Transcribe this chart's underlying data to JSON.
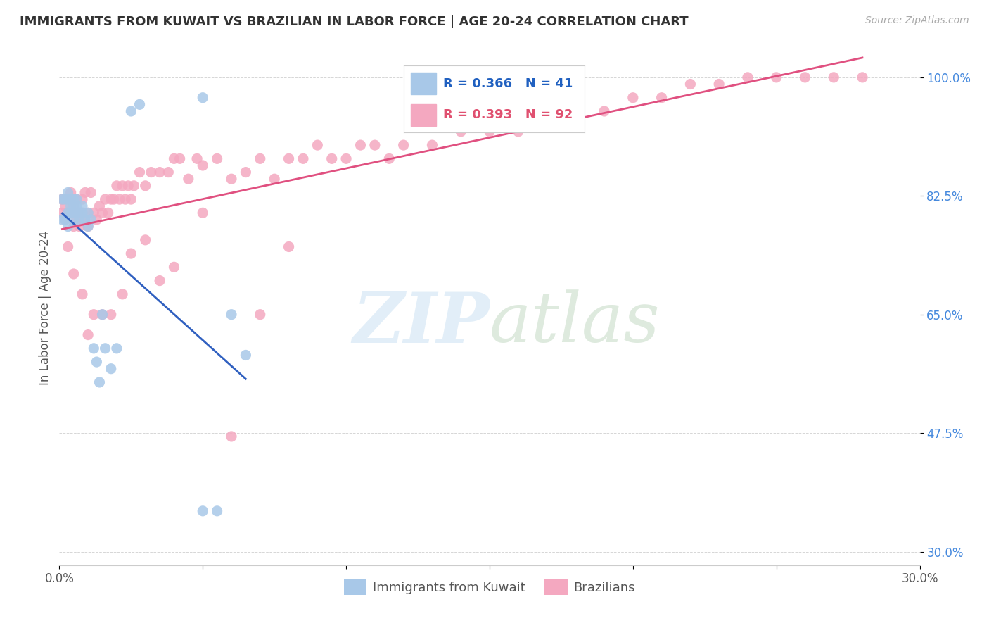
{
  "title": "IMMIGRANTS FROM KUWAIT VS BRAZILIAN IN LABOR FORCE | AGE 20-24 CORRELATION CHART",
  "source": "Source: ZipAtlas.com",
  "ylabel": "In Labor Force | Age 20-24",
  "xlim": [
    0.0,
    0.3
  ],
  "ylim": [
    0.28,
    1.04
  ],
  "yticks": [
    0.3,
    0.475,
    0.65,
    0.825,
    1.0
  ],
  "ytick_labels": [
    "30.0%",
    "47.5%",
    "65.0%",
    "82.5%",
    "100.0%"
  ],
  "xticks": [
    0.0,
    0.05,
    0.1,
    0.15,
    0.2,
    0.25,
    0.3
  ],
  "xtick_labels": [
    "0.0%",
    "",
    "",
    "",
    "",
    "",
    "30.0%"
  ],
  "kuwait_R": 0.366,
  "kuwait_N": 41,
  "brazil_R": 0.393,
  "brazil_N": 92,
  "kuwait_color": "#a8c8e8",
  "brazil_color": "#f4a8c0",
  "kuwait_line_color": "#3060c0",
  "brazil_line_color": "#e05080",
  "legend_blue": "#2060c0",
  "legend_pink": "#e05070",
  "kuwait_x": [
    0.001,
    0.001,
    0.002,
    0.002,
    0.003,
    0.003,
    0.003,
    0.003,
    0.004,
    0.004,
    0.004,
    0.004,
    0.005,
    0.005,
    0.005,
    0.005,
    0.006,
    0.006,
    0.006,
    0.007,
    0.007,
    0.008,
    0.008,
    0.009,
    0.01,
    0.01,
    0.011,
    0.012,
    0.013,
    0.014,
    0.015,
    0.016,
    0.018,
    0.02,
    0.025,
    0.028,
    0.05,
    0.05,
    0.055,
    0.06,
    0.065
  ],
  "kuwait_y": [
    0.79,
    0.82,
    0.79,
    0.82,
    0.78,
    0.8,
    0.82,
    0.83,
    0.81,
    0.82,
    0.8,
    0.82,
    0.8,
    0.82,
    0.79,
    0.81,
    0.8,
    0.81,
    0.82,
    0.79,
    0.8,
    0.81,
    0.8,
    0.79,
    0.78,
    0.8,
    0.79,
    0.6,
    0.58,
    0.55,
    0.65,
    0.6,
    0.57,
    0.6,
    0.95,
    0.96,
    0.97,
    0.36,
    0.36,
    0.65,
    0.59
  ],
  "brazil_x": [
    0.001,
    0.001,
    0.002,
    0.002,
    0.003,
    0.003,
    0.004,
    0.004,
    0.005,
    0.005,
    0.006,
    0.006,
    0.007,
    0.007,
    0.008,
    0.008,
    0.009,
    0.009,
    0.01,
    0.01,
    0.011,
    0.012,
    0.013,
    0.014,
    0.015,
    0.016,
    0.017,
    0.018,
    0.019,
    0.02,
    0.021,
    0.022,
    0.023,
    0.024,
    0.025,
    0.026,
    0.028,
    0.03,
    0.032,
    0.035,
    0.038,
    0.04,
    0.042,
    0.045,
    0.048,
    0.05,
    0.055,
    0.06,
    0.065,
    0.07,
    0.075,
    0.08,
    0.085,
    0.09,
    0.095,
    0.1,
    0.105,
    0.11,
    0.115,
    0.12,
    0.13,
    0.14,
    0.15,
    0.16,
    0.17,
    0.18,
    0.19,
    0.2,
    0.21,
    0.22,
    0.23,
    0.24,
    0.25,
    0.26,
    0.27,
    0.28,
    0.003,
    0.005,
    0.008,
    0.01,
    0.012,
    0.015,
    0.018,
    0.022,
    0.025,
    0.03,
    0.035,
    0.04,
    0.05,
    0.06,
    0.07,
    0.08
  ],
  "brazil_y": [
    0.8,
    0.82,
    0.79,
    0.81,
    0.82,
    0.8,
    0.83,
    0.8,
    0.78,
    0.81,
    0.79,
    0.82,
    0.8,
    0.78,
    0.82,
    0.8,
    0.79,
    0.83,
    0.78,
    0.8,
    0.83,
    0.8,
    0.79,
    0.81,
    0.8,
    0.82,
    0.8,
    0.82,
    0.82,
    0.84,
    0.82,
    0.84,
    0.82,
    0.84,
    0.82,
    0.84,
    0.86,
    0.84,
    0.86,
    0.86,
    0.86,
    0.88,
    0.88,
    0.85,
    0.88,
    0.87,
    0.88,
    0.85,
    0.86,
    0.88,
    0.85,
    0.88,
    0.88,
    0.9,
    0.88,
    0.88,
    0.9,
    0.9,
    0.88,
    0.9,
    0.9,
    0.92,
    0.92,
    0.92,
    0.95,
    0.95,
    0.95,
    0.97,
    0.97,
    0.99,
    0.99,
    1.0,
    1.0,
    1.0,
    1.0,
    1.0,
    0.75,
    0.71,
    0.68,
    0.62,
    0.65,
    0.65,
    0.65,
    0.68,
    0.74,
    0.76,
    0.7,
    0.72,
    0.8,
    0.47,
    0.65,
    0.75
  ]
}
